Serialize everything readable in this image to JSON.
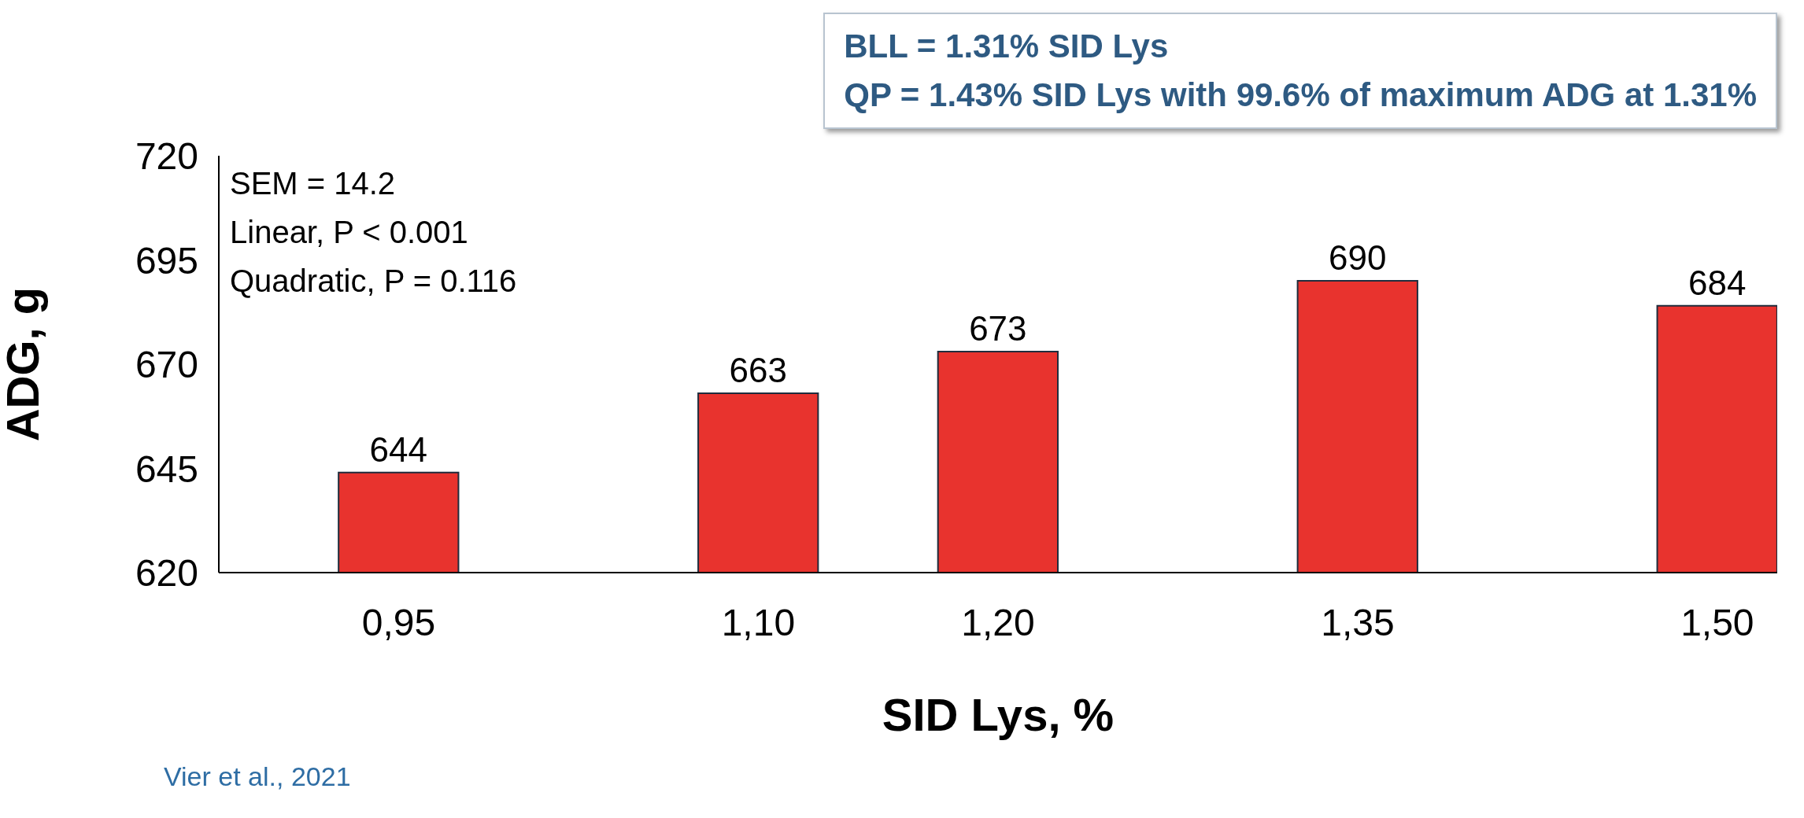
{
  "chart_data": {
    "type": "bar",
    "xlabel": "SID Lys, %",
    "ylabel": "ADG, g",
    "x": [
      0.95,
      1.1,
      1.2,
      1.35,
      1.5
    ],
    "values": [
      644,
      663,
      673,
      690,
      684
    ],
    "color": "#e8332e",
    "xlim": [
      0.875,
      1.525
    ],
    "xticks": [
      {
        "value": 0.95,
        "label": "0,95"
      },
      {
        "value": 1.1,
        "label": "1,10"
      },
      {
        "value": 1.2,
        "label": "1,20"
      },
      {
        "value": 1.35,
        "label": "1,35"
      },
      {
        "value": 1.5,
        "label": "1,50"
      }
    ],
    "ylim": [
      620,
      720
    ],
    "yticks": [
      620,
      645,
      670,
      695,
      720
    ],
    "grid": false,
    "data_labels": true,
    "annotations": [
      "SEM = 14.2",
      "Linear, P < 0.001",
      "Quadratic, P = 0.116",
      "BLL = 1.31% SID Lys",
      "QP = 1.43% SID Lys with 99.6% of maximum ADG at 1.31%",
      "Vier et al., 2021"
    ]
  }
}
